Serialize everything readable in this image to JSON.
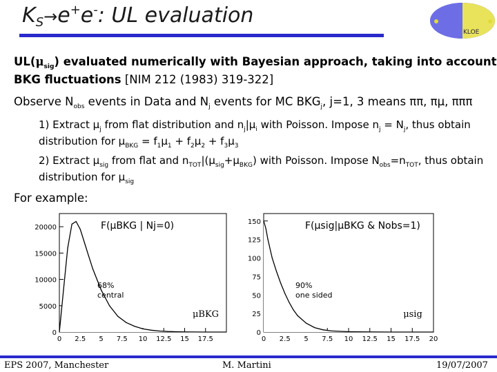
{
  "header": {
    "title_K": "K",
    "title_S": "S",
    "title_arrow": "→",
    "title_e1": "e",
    "title_plus": "+",
    "title_e2": "e",
    "title_minus": "-",
    "title_rest": ": UL evaluation",
    "logo_text": "KLOE"
  },
  "body": {
    "line1a": "UL(",
    "line1_mu": "μ",
    "line1_sig": "sig",
    "line1b": ") evaluated numerically with Bayesian approach, taking into account",
    "line2a": "BKG fluctuations",
    "line2b": " [NIM 212 (1983) 319-322]",
    "line3a": "Observe N",
    "line3_obs": "obs",
    "line3b": " events in Data and N",
    "line3_j": "j",
    "line3c": " events for MC BKG",
    "line3_j2": "j",
    "line3d": ", j=1, 3 means ππ, πμ, πππ",
    "item1a": "1) Extract μ",
    "item1_j": "j",
    "item1b": " from flat distribution and n",
    "item1_j2": "j",
    "item1c": "|μ",
    "item1_i": "i",
    "item1d": " with Poisson. Impose n",
    "item1_j3": "j",
    "item1e": " = N",
    "item1_j4": "j",
    "item1f": ", thus obtain",
    "item1g": "distribution for μ",
    "item1_bkg": "BKG",
    "item1h": " = f",
    "item1_1": "1",
    "item1i": "μ",
    "item1_1b": "1",
    "item1j": " + f",
    "item1_2": "2",
    "item1k": "μ",
    "item1_2b": "2",
    "item1l": " + f",
    "item1_3": "3",
    "item1m": "μ",
    "item1_3b": "3",
    "item2a": "2) Extract μ",
    "item2_sig": "sig",
    "item2b": " from flat and n",
    "item2_tot": "TOT",
    "item2c": "|(μ",
    "item2_sig2": "sig",
    "item2d": "+μ",
    "item2_bkg": "BKG",
    "item2e": ") with Poisson. Impose N",
    "item2_obs": "obs",
    "item2f": "=n",
    "item2_tot2": "TOT",
    "item2g": ", thus obtain",
    "item2h": "distribution for μ",
    "item2_sig3": "sig",
    "example": "For example:"
  },
  "chart_data": [
    {
      "type": "line",
      "title": "F(μBKG | Nj=0)",
      "xlabel": "μBKG",
      "ylabel": "",
      "xlim": [
        0,
        20
      ],
      "ylim": [
        0,
        22500
      ],
      "xticks": [
        "0",
        "2.5",
        "5",
        "7.5",
        "10",
        "12.5",
        "15",
        "17.5"
      ],
      "yticks": [
        "0",
        "5000",
        "10000",
        "15000",
        "20000"
      ],
      "annotation": "68% central",
      "x": [
        0.0,
        0.5,
        1.0,
        1.5,
        2.0,
        2.5,
        3.0,
        3.5,
        4.0,
        5.0,
        6.0,
        7.0,
        8.0,
        9.0,
        10.0,
        11.0,
        12.0,
        13.0,
        14.0,
        15.0,
        16.0,
        17.5,
        20.0
      ],
      "y": [
        0,
        8000,
        16000,
        20500,
        21000,
        19500,
        17000,
        14500,
        12000,
        8000,
        5000,
        3000,
        1800,
        1100,
        600,
        350,
        200,
        110,
        60,
        30,
        15,
        5,
        0
      ]
    },
    {
      "type": "line",
      "title": "F(μsig|μBKG & Nobs=1)",
      "xlabel": "μsig",
      "ylabel": "",
      "xlim": [
        0,
        20
      ],
      "ylim": [
        0,
        160
      ],
      "xticks": [
        "0",
        "2.5",
        "5",
        "7.5",
        "10",
        "12.5",
        "15",
        "17.5",
        "20"
      ],
      "yticks": [
        "0",
        "25",
        "50",
        "75",
        "100",
        "125",
        "150"
      ],
      "annotation": "90% one sided",
      "x": [
        0.0,
        0.25,
        0.5,
        1.0,
        1.5,
        2.0,
        2.5,
        3.0,
        3.5,
        4.0,
        5.0,
        6.0,
        7.0,
        8.0,
        10.0,
        12.0,
        15.0,
        20.0
      ],
      "y": [
        150,
        140,
        125,
        100,
        82,
        66,
        52,
        40,
        30,
        22,
        12,
        6,
        3,
        1.5,
        0.5,
        0.2,
        0,
        0
      ]
    }
  ],
  "footer": {
    "left": "EPS 2007, Manchester",
    "center": "M. Martini",
    "right": "19/07/2007"
  },
  "colors": {
    "accent": "#2a2acc"
  }
}
